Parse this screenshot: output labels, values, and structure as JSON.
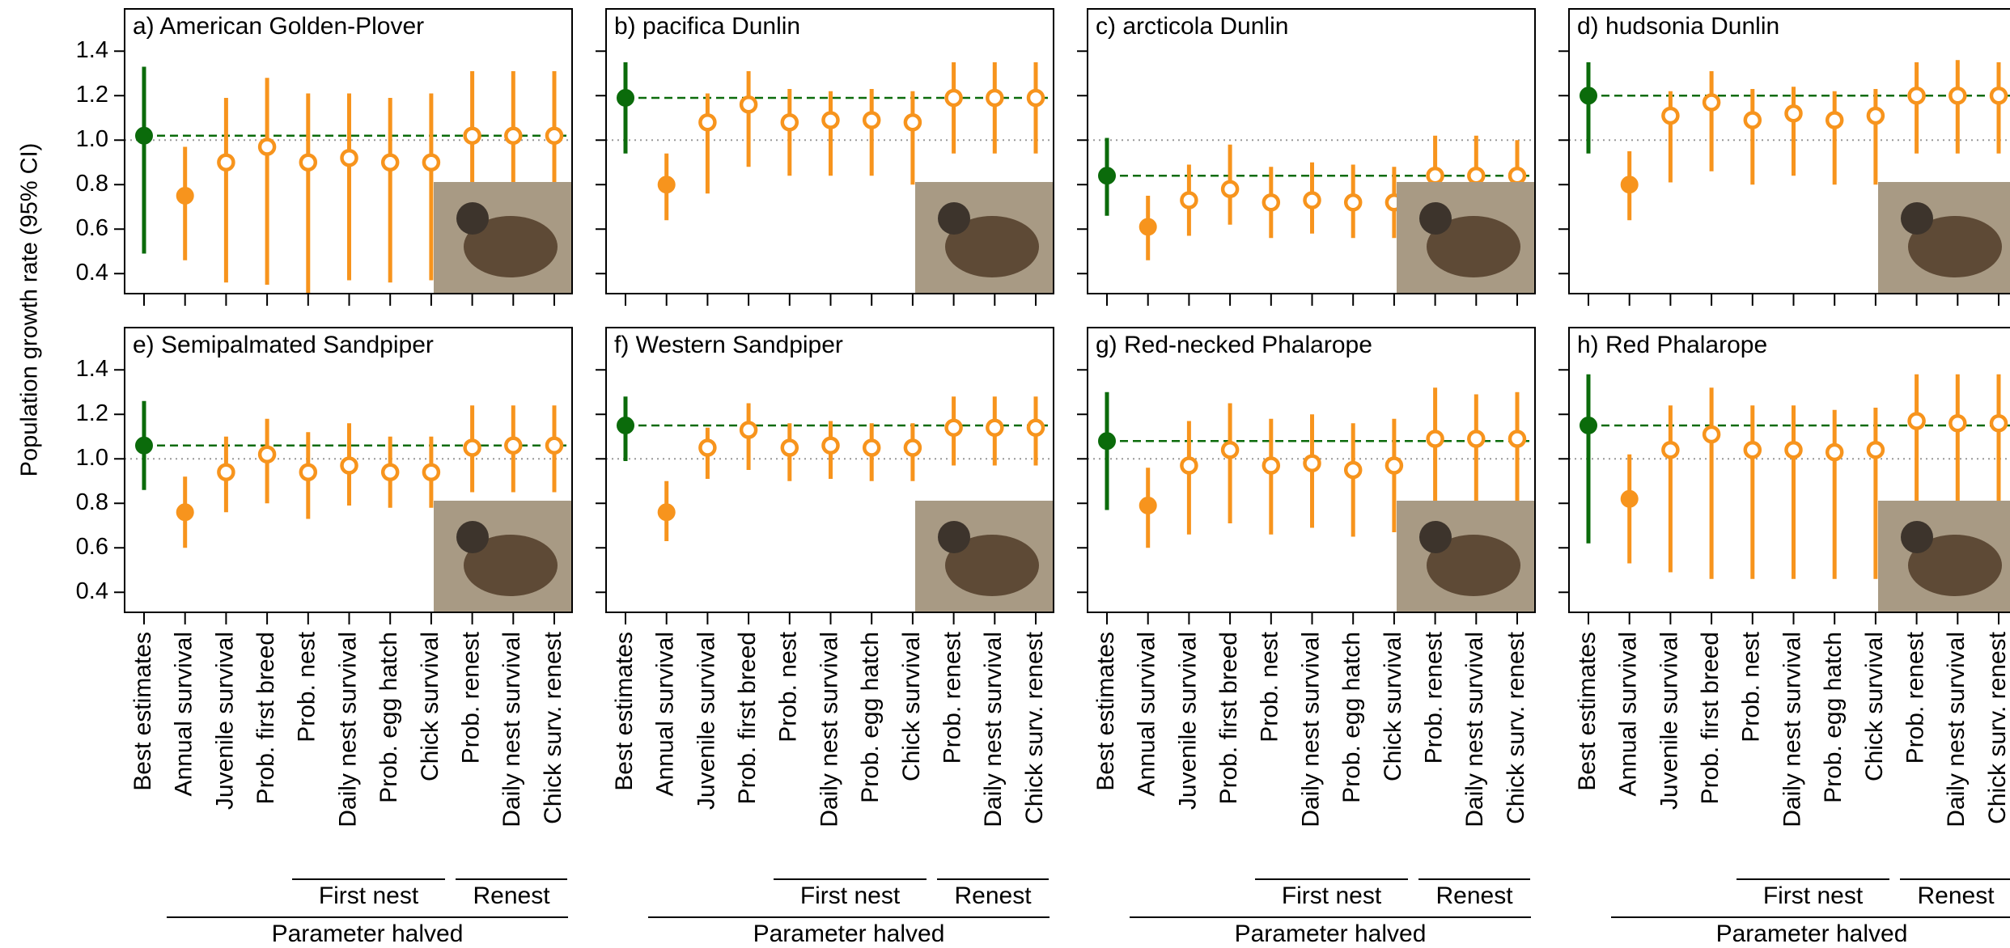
{
  "ylabel": "Population growth rate (95% CI)",
  "categories": [
    "Best estimates",
    "Annual survival",
    "Juvenile survival",
    "Prob. first breed",
    "Prob. nest",
    "Daily nest survival",
    "Prob. egg hatch",
    "Chick survival",
    "Prob. renest",
    "Daily nest survival",
    "Chick surv. renest"
  ],
  "group_labels": [
    "First nest",
    "Renest",
    "Parameter halved"
  ],
  "marker_colors": [
    "#0b6b0b",
    "#f7941d",
    "#f7941d",
    "#f7941d",
    "#f7941d",
    "#f7941d",
    "#f7941d",
    "#f7941d",
    "#f7941d",
    "#f7941d",
    "#f7941d"
  ],
  "marker_fill": [
    "filled",
    "filled",
    "open",
    "open",
    "open",
    "open",
    "open",
    "open",
    "open",
    "open",
    "open"
  ],
  "reference_line": 1,
  "chart_data": [
    {
      "type": "errorbar",
      "title": "a) American Golden-Plover",
      "ylim": [
        0.31,
        1.59
      ],
      "yticks": [
        0.4,
        0.6,
        0.8,
        {
          "value": 1,
          "label": "1.0"
        },
        1.2,
        1.4
      ],
      "values": [
        1.02,
        0.75,
        0.9,
        0.97,
        0.9,
        0.92,
        0.9,
        0.9,
        1.02,
        1.02,
        1.02
      ],
      "lower": [
        0.49,
        0.46,
        0.36,
        0.35,
        0.31,
        0.37,
        0.36,
        0.37,
        0.44,
        0.44,
        0.44
      ],
      "upper": [
        1.33,
        0.97,
        1.19,
        1.28,
        1.21,
        1.21,
        1.19,
        1.21,
        1.31,
        1.31,
        1.31
      ]
    },
    {
      "type": "errorbar",
      "title": "b) pacifica Dunlin",
      "ylim": [
        0.31,
        1.59
      ],
      "yticks": [
        0.4,
        0.6,
        0.8,
        {
          "value": 1,
          "label": "1.0"
        },
        1.2,
        1.4
      ],
      "values": [
        1.19,
        0.8,
        1.08,
        1.16,
        1.08,
        1.09,
        1.09,
        1.08,
        1.19,
        1.19,
        1.19
      ],
      "lower": [
        0.94,
        0.64,
        0.76,
        0.88,
        0.84,
        0.84,
        0.84,
        0.8,
        0.94,
        0.94,
        0.94
      ],
      "upper": [
        1.35,
        0.94,
        1.21,
        1.31,
        1.23,
        1.22,
        1.23,
        1.22,
        1.35,
        1.35,
        1.35
      ]
    },
    {
      "type": "errorbar",
      "title": "c) arcticola Dunlin",
      "ylim": [
        0.31,
        1.59
      ],
      "yticks": [
        0.4,
        0.6,
        0.8,
        {
          "value": 1,
          "label": "1.0"
        },
        1.2,
        1.4
      ],
      "values": [
        0.84,
        0.61,
        0.73,
        0.78,
        0.72,
        0.73,
        0.72,
        0.72,
        0.84,
        0.84,
        0.84
      ],
      "lower": [
        0.66,
        0.46,
        0.57,
        0.62,
        0.56,
        0.58,
        0.56,
        0.56,
        0.66,
        0.66,
        0.66
      ],
      "upper": [
        1.01,
        0.75,
        0.89,
        0.98,
        0.88,
        0.9,
        0.89,
        0.88,
        1.02,
        1.02,
        1.0
      ]
    },
    {
      "type": "errorbar",
      "title": "d) hudsonia Dunlin",
      "ylim": [
        0.31,
        1.59
      ],
      "yticks": [
        0.4,
        0.6,
        0.8,
        {
          "value": 1,
          "label": "1.0"
        },
        1.2,
        1.4
      ],
      "values": [
        1.2,
        0.8,
        1.11,
        1.17,
        1.09,
        1.12,
        1.09,
        1.11,
        1.2,
        1.2,
        1.2
      ],
      "lower": [
        0.94,
        0.64,
        0.81,
        0.86,
        0.8,
        0.84,
        0.8,
        0.8,
        0.94,
        0.94,
        0.94
      ],
      "upper": [
        1.35,
        0.95,
        1.22,
        1.31,
        1.23,
        1.24,
        1.22,
        1.23,
        1.35,
        1.36,
        1.35
      ]
    },
    {
      "type": "errorbar",
      "title": "e) Semipalmated Sandpiper",
      "ylim": [
        0.31,
        1.59
      ],
      "yticks": [
        0.4,
        0.6,
        0.8,
        {
          "value": 1,
          "label": "1.0"
        },
        1.2,
        1.4
      ],
      "values": [
        1.06,
        0.76,
        0.94,
        1.02,
        0.94,
        0.97,
        0.94,
        0.94,
        1.05,
        1.06,
        1.06
      ],
      "lower": [
        0.86,
        0.6,
        0.76,
        0.8,
        0.73,
        0.79,
        0.78,
        0.78,
        0.85,
        0.85,
        0.85
      ],
      "upper": [
        1.26,
        0.92,
        1.1,
        1.18,
        1.12,
        1.16,
        1.1,
        1.1,
        1.24,
        1.24,
        1.24
      ]
    },
    {
      "type": "errorbar",
      "title": "f) Western Sandpiper",
      "ylim": [
        0.31,
        1.59
      ],
      "yticks": [
        0.4,
        0.6,
        0.8,
        {
          "value": 1,
          "label": "1.0"
        },
        1.2,
        1.4
      ],
      "values": [
        1.15,
        0.76,
        1.05,
        1.13,
        1.05,
        1.06,
        1.05,
        1.05,
        1.14,
        1.14,
        1.14
      ],
      "lower": [
        0.99,
        0.63,
        0.91,
        0.95,
        0.9,
        0.91,
        0.9,
        0.9,
        0.97,
        0.97,
        0.97
      ],
      "upper": [
        1.28,
        0.9,
        1.14,
        1.25,
        1.16,
        1.17,
        1.16,
        1.16,
        1.28,
        1.28,
        1.28
      ]
    },
    {
      "type": "errorbar",
      "title": "g) Red-necked Phalarope",
      "ylim": [
        0.31,
        1.59
      ],
      "yticks": [
        0.4,
        0.6,
        0.8,
        {
          "value": 1,
          "label": "1.0"
        },
        1.2,
        1.4
      ],
      "values": [
        1.08,
        0.79,
        0.97,
        1.04,
        0.97,
        0.98,
        0.95,
        0.97,
        1.09,
        1.09,
        1.09
      ],
      "lower": [
        0.77,
        0.6,
        0.66,
        0.71,
        0.66,
        0.69,
        0.65,
        0.67,
        0.78,
        0.78,
        0.78
      ],
      "upper": [
        1.3,
        0.96,
        1.17,
        1.25,
        1.18,
        1.2,
        1.16,
        1.18,
        1.32,
        1.29,
        1.3
      ]
    },
    {
      "type": "errorbar",
      "title": "h) Red Phalarope",
      "ylim": [
        0.31,
        1.59
      ],
      "yticks": [
        0.4,
        0.6,
        0.8,
        {
          "value": 1,
          "label": "1.0"
        },
        1.2,
        1.4
      ],
      "values": [
        1.15,
        0.82,
        1.04,
        1.11,
        1.04,
        1.04,
        1.03,
        1.04,
        1.17,
        1.16,
        1.16
      ],
      "lower": [
        0.62,
        0.53,
        0.49,
        0.46,
        0.46,
        0.46,
        0.46,
        0.46,
        0.8,
        0.8,
        0.8
      ],
      "upper": [
        1.38,
        1.02,
        1.24,
        1.32,
        1.24,
        1.24,
        1.22,
        1.23,
        1.38,
        1.38,
        1.38
      ]
    }
  ]
}
